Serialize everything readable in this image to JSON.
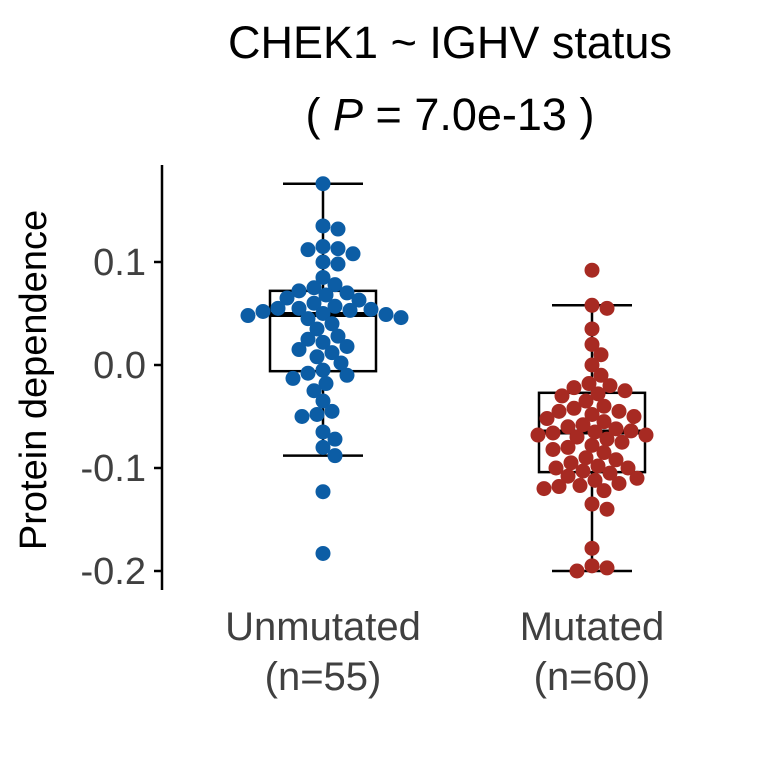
{
  "chart_data": {
    "type": "box",
    "title": "CHEK1 ~ IGHV status",
    "subtitle_prefix": "( ",
    "subtitle_p": "P",
    "subtitle_rest": " = 7.0e-13 )",
    "ylabel": "Protein dependence",
    "xlabel": "",
    "ylim": [
      -0.205,
      0.19
    ],
    "yticks": [
      0.1,
      0.0,
      -0.1,
      -0.2
    ],
    "ytick_labels": [
      "0.1",
      "0.0",
      "-0.1",
      "-0.2"
    ],
    "grid": false,
    "groups": [
      {
        "name": "Unmutated",
        "n_label": "(n=55)",
        "color": "#0C5DA5",
        "box": {
          "q1": -0.006,
          "median": 0.049,
          "q3": 0.072,
          "whisker_low": -0.088,
          "whisker_high": 0.176
        },
        "values": [
          0.176,
          0.135,
          0.132,
          0.115,
          0.113,
          0.112,
          0.108,
          0.1,
          0.098,
          0.085,
          0.078,
          0.075,
          0.072,
          0.07,
          0.068,
          0.065,
          0.063,
          0.06,
          0.057,
          0.055,
          0.055,
          0.054,
          0.053,
          0.052,
          0.05,
          0.049,
          0.048,
          0.046,
          0.045,
          0.04,
          0.035,
          0.028,
          0.025,
          0.022,
          0.018,
          0.015,
          0.012,
          0.008,
          0.002,
          -0.005,
          -0.008,
          -0.01,
          -0.013,
          -0.018,
          -0.025,
          -0.035,
          -0.045,
          -0.048,
          -0.05,
          -0.065,
          -0.072,
          -0.08,
          -0.088,
          -0.123,
          -0.183
        ]
      },
      {
        "name": "Mutated",
        "n_label": "(n=60)",
        "color": "#A72A22",
        "box": {
          "q1": -0.104,
          "median": -0.065,
          "q3": -0.027,
          "whisker_low": -0.2,
          "whisker_high": 0.058
        },
        "values": [
          0.092,
          0.058,
          0.055,
          0.035,
          0.02,
          0.01,
          0.0,
          -0.01,
          -0.018,
          -0.02,
          -0.022,
          -0.025,
          -0.028,
          -0.03,
          -0.035,
          -0.04,
          -0.042,
          -0.045,
          -0.045,
          -0.048,
          -0.05,
          -0.052,
          -0.055,
          -0.058,
          -0.06,
          -0.062,
          -0.064,
          -0.065,
          -0.066,
          -0.068,
          -0.068,
          -0.07,
          -0.072,
          -0.075,
          -0.078,
          -0.08,
          -0.082,
          -0.085,
          -0.09,
          -0.092,
          -0.095,
          -0.098,
          -0.1,
          -0.1,
          -0.103,
          -0.105,
          -0.108,
          -0.11,
          -0.112,
          -0.115,
          -0.117,
          -0.118,
          -0.12,
          -0.122,
          -0.135,
          -0.14,
          -0.178,
          -0.195,
          -0.197,
          -0.2
        ]
      }
    ]
  }
}
